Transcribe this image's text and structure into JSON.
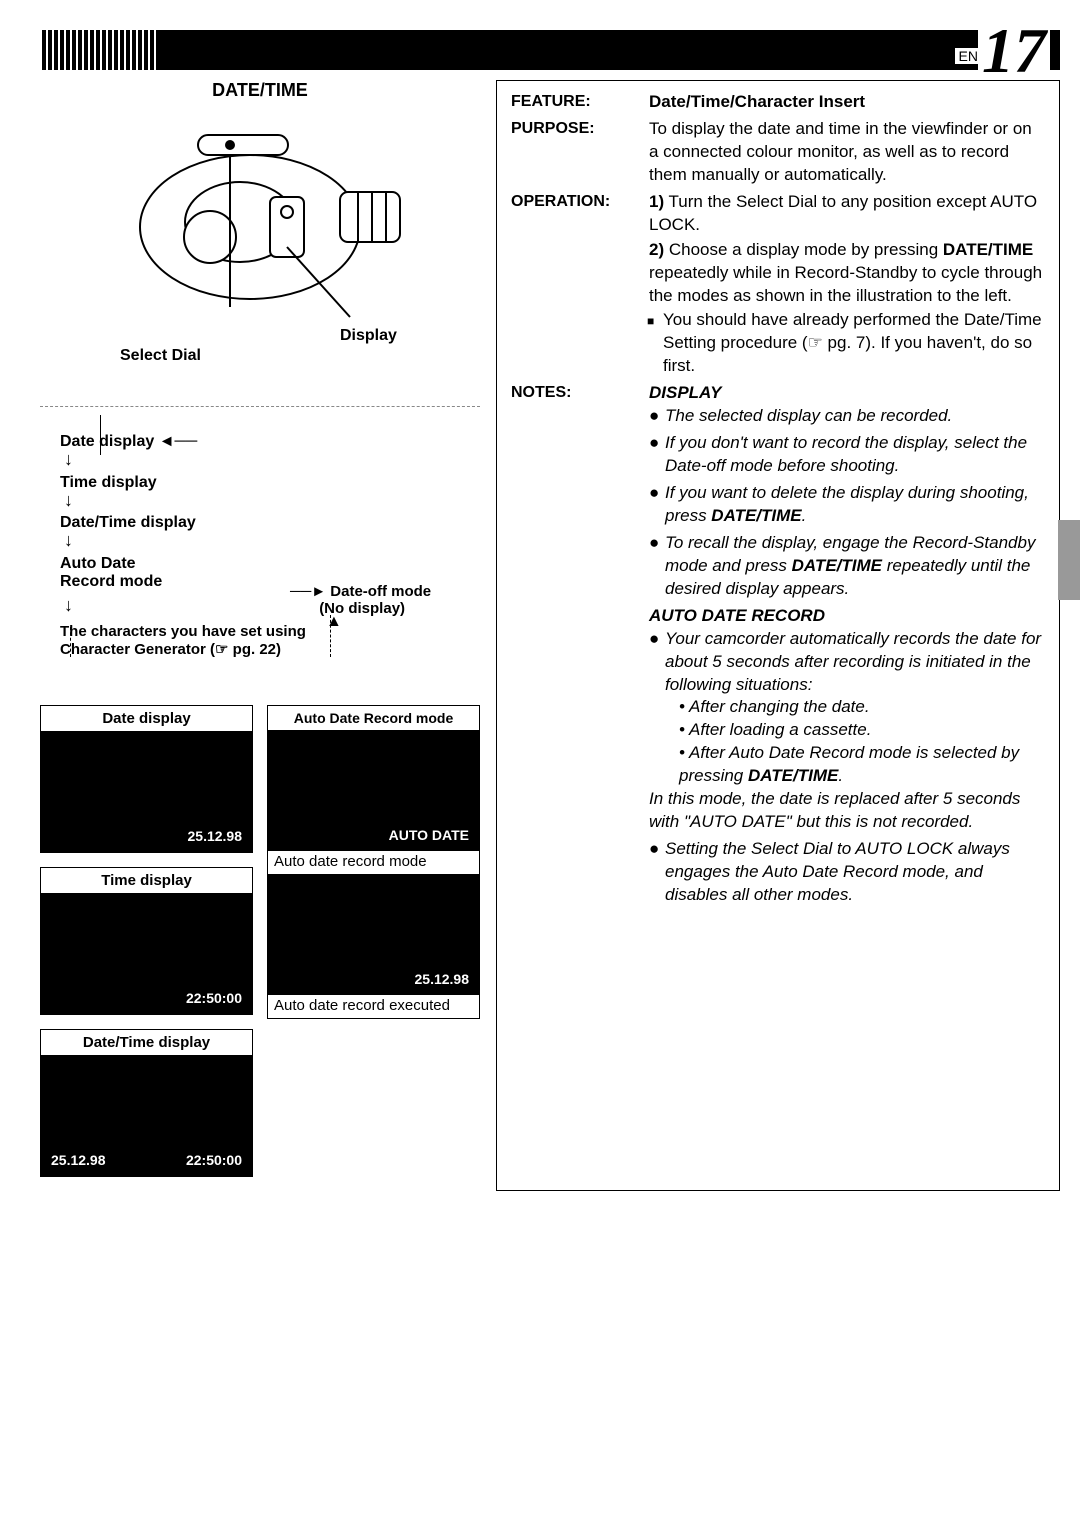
{
  "page": {
    "lang": "EN",
    "number": "17"
  },
  "left": {
    "title": "DATE/TIME",
    "labels": {
      "select_dial": "Select Dial",
      "display": "Display"
    },
    "flow": {
      "items": [
        "Date display",
        "Time display",
        "Date/Time display",
        "Auto Date\nRecord mode"
      ],
      "right_label_1": "Date-off mode",
      "right_label_2": "(No display)",
      "note_line1": "The characters you have set using",
      "note_line2": "Character Generator (☞ pg. 22)"
    },
    "screens": {
      "date": {
        "title": "Date display",
        "value": "25.12.98"
      },
      "time": {
        "title": "Time display",
        "value": "22:50:00"
      },
      "datetime": {
        "title": "Date/Time display",
        "date": "25.12.98",
        "time": "22:50:00"
      },
      "auto1": {
        "title": "Auto Date Record mode",
        "value": "AUTO DATE",
        "caption": "Auto date record mode"
      },
      "auto2": {
        "value": "25.12.98",
        "caption": "Auto date record executed"
      }
    }
  },
  "right": {
    "feature_label": "FEATURE:",
    "feature_value": "Date/Time/Character Insert",
    "purpose_label": "PURPOSE:",
    "purpose_value": "To display the date and time in the viewfinder or on a connected colour monitor, as well as to record them manually or automatically.",
    "operation_label": "OPERATION:",
    "op1_num": "1)",
    "op1_text": "Turn the Select Dial to any position except AUTO LOCK.",
    "op2_num": "2)",
    "op2_text_a": "Choose a display mode by pressing ",
    "op2_bold": "DATE/TIME",
    "op2_text_b": " repeatedly while in Record-Standby to cycle through the modes as shown in the illustration to the left.",
    "op_sub": "You should have already performed the Date/Time Setting procedure (☞ pg. 7). If you haven't, do so first.",
    "notes_label": "NOTES:",
    "display_head": "DISPLAY",
    "display_notes": [
      "The selected display can be recorded.",
      "If you don't want to record the display, select the Date-off mode before shooting.",
      "If you want to delete the display during shooting, press <b>DATE/TIME</b>.",
      "To recall the display, engage the Record-Standby mode and press <b>DATE/TIME</b> repeatedly until the desired display appears."
    ],
    "auto_head": "AUTO DATE RECORD",
    "auto_bullet": "Your camcorder automatically records the date for about 5 seconds after recording is initiated in the following situations:",
    "auto_subs": [
      "After changing the date.",
      "After loading a cassette.",
      "After Auto Date Record mode is selected by pressing <b>DATE/TIME</b>."
    ],
    "auto_tail": "In this mode, the date is replaced after 5 seconds with \"AUTO DATE\" but this is not recorded.",
    "auto_last": "Setting the Select Dial to AUTO LOCK always engages the Auto Date Record mode, and disables all other modes."
  }
}
